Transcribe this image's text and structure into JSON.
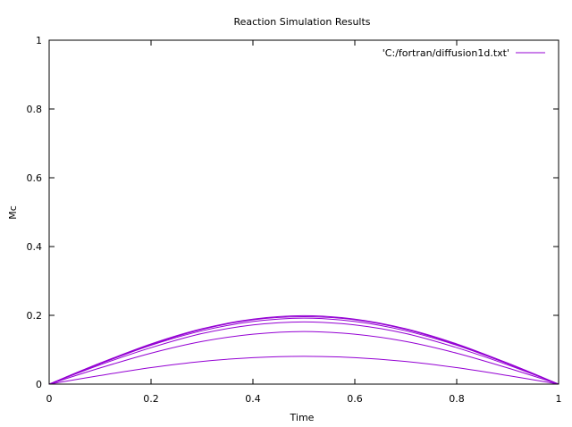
{
  "chart_data": {
    "type": "line",
    "title": "Reaction Simulation Results",
    "xlabel": "Time",
    "ylabel": "Mc",
    "xlim": [
      0,
      1
    ],
    "ylim": [
      0,
      1
    ],
    "xticks": [
      "0",
      "0.2",
      "0.4",
      "0.6",
      "0.8",
      "1"
    ],
    "yticks": [
      "0",
      "0.2",
      "0.4",
      "0.6",
      "0.8",
      "1"
    ],
    "grid": false,
    "legend_position": "top-right",
    "legend": [
      "'C:/fortran/diffusion1d.txt'"
    ],
    "line_color": "#9400d3",
    "x": [
      0,
      0.1,
      0.2,
      0.3,
      0.4,
      0.5,
      0.6,
      0.7,
      0.8,
      0.9,
      1.0
    ],
    "series": [
      {
        "values": [
          0,
          0.025,
          0.048,
          0.066,
          0.077,
          0.081,
          0.077,
          0.066,
          0.048,
          0.025,
          0
        ]
      },
      {
        "values": [
          0,
          0.047,
          0.09,
          0.124,
          0.145,
          0.153,
          0.145,
          0.124,
          0.09,
          0.047,
          0
        ]
      },
      {
        "values": [
          0,
          0.056,
          0.106,
          0.147,
          0.172,
          0.181,
          0.172,
          0.147,
          0.106,
          0.056,
          0
        ]
      },
      {
        "values": [
          0,
          0.059,
          0.113,
          0.155,
          0.182,
          0.192,
          0.182,
          0.155,
          0.113,
          0.059,
          0
        ]
      },
      {
        "values": [
          0,
          0.061,
          0.115,
          0.159,
          0.187,
          0.196,
          0.187,
          0.159,
          0.115,
          0.061,
          0
        ]
      },
      {
        "values": [
          0,
          0.061,
          0.117,
          0.161,
          0.189,
          0.199,
          0.189,
          0.161,
          0.117,
          0.061,
          0
        ]
      }
    ]
  }
}
